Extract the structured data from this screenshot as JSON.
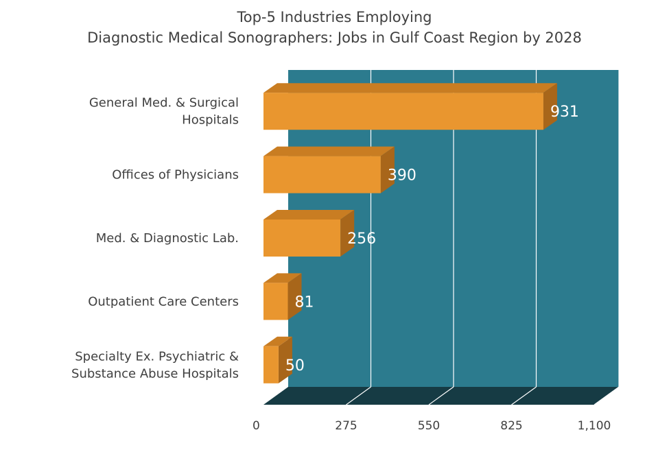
{
  "chart_data": {
    "type": "bar",
    "orientation": "horizontal",
    "style": "3d",
    "title_lines": [
      "Top-5 Industries Employing",
      "Diagnostic Medical Sonographers: Jobs in Gulf Coast Region by 2028"
    ],
    "categories": [
      [
        "General Med. & Surgical",
        "Hospitals"
      ],
      [
        "Offices of Physicians"
      ],
      [
        "Med. & Diagnostic Lab."
      ],
      [
        "Outpatient Care Centers"
      ],
      [
        "Specialty Ex. Psychiatric &",
        "Substance Abuse Hospitals"
      ]
    ],
    "values": [
      931,
      390,
      256,
      81,
      50
    ],
    "data_labels": [
      "931",
      "390",
      "256",
      "81",
      "50"
    ],
    "xlim": [
      0,
      1100
    ],
    "x_ticks": [
      0,
      275,
      550,
      825,
      1100
    ],
    "x_tick_labels": [
      "0",
      "275",
      "550",
      "825",
      "1,100"
    ],
    "grid": true,
    "colors": {
      "bar_front": "#e9962f",
      "bar_top": "#c97d22",
      "bar_side": "#a8661a",
      "back_wall": "#2c7b8e",
      "floor": "#163b44",
      "gridline": "#ffffff"
    }
  }
}
